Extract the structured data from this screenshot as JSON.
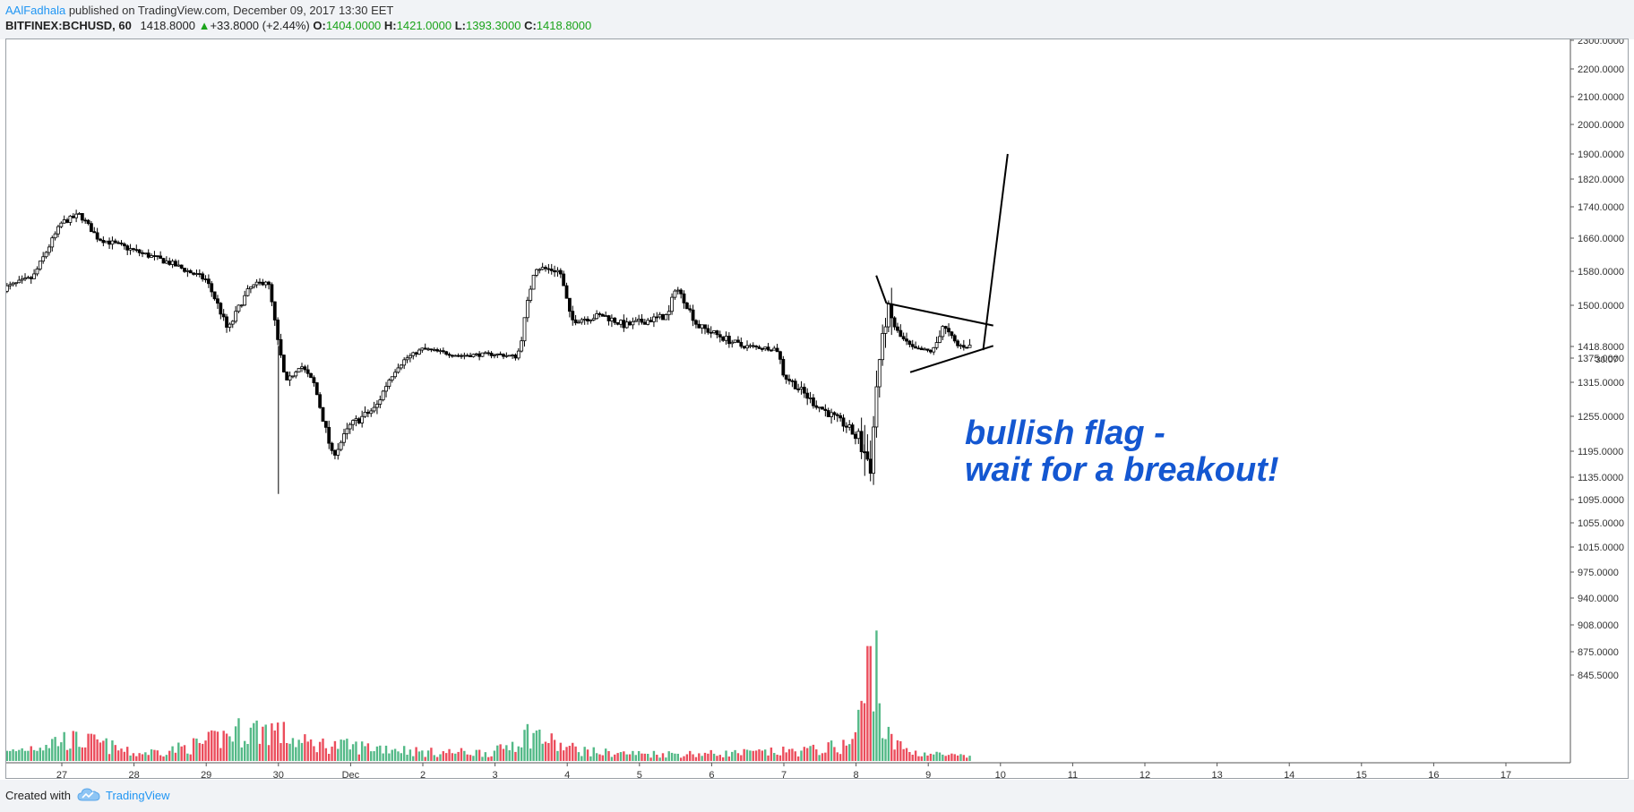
{
  "header": {
    "author": "AAlFadhala",
    "published_text": " published on TradingView.com, December 09, 2017 13:30 EET",
    "symbol": "BITFINEX:BCHUSD, 60",
    "last": "1418.8000",
    "change": "+33.8000 (+2.44%)",
    "o_label": "O:",
    "o_value": "1404.0000",
    "h_label": "H:",
    "h_value": "1421.0000",
    "l_label": "L:",
    "l_value": "1393.3000",
    "c_label": "C:",
    "c_value": "1418.8000"
  },
  "footer": {
    "created_with": "Created with",
    "brand": "TradingView"
  },
  "colors": {
    "up": "#26a69a",
    "down": "#ef5350",
    "volume_up": "#53b987",
    "volume_down": "#eb4d5c",
    "annotation": "#1457d1",
    "candle": "#000000"
  },
  "chart_data": {
    "type": "candlestick",
    "x_ticks": [
      "27",
      "28",
      "29",
      "30",
      "Dec",
      "2",
      "3",
      "4",
      "5",
      "6",
      "7",
      "8",
      "9",
      "10",
      "11",
      "12",
      "13",
      "14",
      "15",
      "16",
      "17"
    ],
    "y_ticks": [
      "2300.0000",
      "2200.0000",
      "2100.0000",
      "2000.0000",
      "1900.0000",
      "1820.0000",
      "1740.0000",
      "1660.0000",
      "1580.0000",
      "1500.0000",
      "1375.0000",
      "1315.0000",
      "1255.0000",
      "1195.0000",
      "1135.0000",
      "1095.0000",
      "1055.0000",
      "1015.0000",
      "975.0000",
      "940.0000",
      "908.0000",
      "875.0000",
      "845.5000"
    ],
    "price_scale": [
      [
        2300,
        2300
      ],
      [
        2200,
        2200
      ],
      [
        2100,
        2100
      ],
      [
        2000,
        2000
      ],
      [
        1900,
        1900
      ],
      [
        1820,
        1820
      ],
      [
        1740,
        1740
      ],
      [
        1660,
        1660
      ],
      [
        1580,
        1580
      ],
      [
        1500,
        1500
      ],
      [
        1418.8,
        1418.8
      ],
      [
        1375,
        1375
      ],
      [
        1315,
        1315
      ],
      [
        1255,
        1255
      ],
      [
        1195,
        1195
      ],
      [
        1135,
        1135
      ],
      [
        1095,
        1095
      ],
      [
        1055,
        1055
      ],
      [
        1015,
        1015
      ],
      [
        975,
        975
      ],
      [
        940,
        940
      ],
      [
        908,
        908
      ],
      [
        875,
        875
      ],
      [
        845.5,
        845.5
      ]
    ],
    "last_price_label": "1418.8000",
    "countdown_label": "30:07",
    "price_path": [
      [
        -0.8,
        1540
      ],
      [
        -0.4,
        1565
      ],
      [
        0,
        1700
      ],
      [
        0.25,
        1720
      ],
      [
        0.5,
        1660
      ],
      [
        1.0,
        1630
      ],
      [
        1.5,
        1600
      ],
      [
        2.0,
        1560
      ],
      [
        2.3,
        1450
      ],
      [
        2.6,
        1540
      ],
      [
        2.85,
        1560
      ],
      [
        3.0,
        1420
      ],
      [
        3.1,
        1310
      ],
      [
        3.3,
        1360
      ],
      [
        3.5,
        1310
      ],
      [
        3.75,
        1185
      ],
      [
        4.0,
        1240
      ],
      [
        4.35,
        1270
      ],
      [
        4.65,
        1355
      ],
      [
        5.0,
        1410
      ],
      [
        5.5,
        1385
      ],
      [
        6.0,
        1390
      ],
      [
        6.3,
        1380
      ],
      [
        6.55,
        1590
      ],
      [
        6.9,
        1580
      ],
      [
        7.05,
        1470
      ],
      [
        7.5,
        1480
      ],
      [
        7.8,
        1460
      ],
      [
        8.4,
        1480
      ],
      [
        8.5,
        1545
      ],
      [
        8.8,
        1460
      ],
      [
        9.4,
        1420
      ],
      [
        9.9,
        1410
      ],
      [
        10.0,
        1330
      ],
      [
        10.4,
        1280
      ],
      [
        10.9,
        1235
      ],
      [
        11.1,
        1200
      ],
      [
        11.2,
        1160
      ],
      [
        11.3,
        1340
      ],
      [
        11.42,
        1490
      ],
      [
        11.6,
        1440
      ],
      [
        11.8,
        1410
      ],
      [
        12.05,
        1400
      ],
      [
        12.2,
        1460
      ],
      [
        12.4,
        1420
      ],
      [
        12.6,
        1418.8
      ]
    ],
    "volume_profile": [
      [
        -0.8,
        10
      ],
      [
        0.0,
        30
      ],
      [
        0.5,
        25
      ],
      [
        1.0,
        10
      ],
      [
        1.5,
        15
      ],
      [
        2.0,
        25
      ],
      [
        2.4,
        40
      ],
      [
        2.9,
        45
      ],
      [
        3.3,
        25
      ],
      [
        4.0,
        20
      ],
      [
        4.6,
        18
      ],
      [
        5.0,
        12
      ],
      [
        6.0,
        12
      ],
      [
        6.5,
        40
      ],
      [
        6.9,
        20
      ],
      [
        7.4,
        12
      ],
      [
        8.0,
        10
      ],
      [
        9.0,
        10
      ],
      [
        9.8,
        12
      ],
      [
        10.4,
        15
      ],
      [
        10.9,
        22
      ],
      [
        11.0,
        40
      ],
      [
        11.1,
        80
      ],
      [
        11.2,
        145
      ],
      [
        11.27,
        165
      ],
      [
        11.35,
        50
      ],
      [
        11.5,
        25
      ],
      [
        11.8,
        12
      ],
      [
        12.6,
        5
      ]
    ],
    "annotations": {
      "text_line1": "bullish flag -",
      "text_line2": "wait for a breakout!",
      "lines": [
        {
          "name": "pole-line",
          "points": [
            [
              11.28,
              1570
            ],
            [
              11.42,
              1505
            ]
          ]
        },
        {
          "name": "flag-upper-line",
          "points": [
            [
              11.42,
              1505
            ],
            [
              12.9,
              1460
            ]
          ]
        },
        {
          "name": "flag-lower-line",
          "points": [
            [
              11.75,
              1340
            ],
            [
              12.9,
              1420
            ]
          ]
        },
        {
          "name": "breakout-line",
          "points": [
            [
              12.76,
              1405
            ],
            [
              13.1,
              1900
            ]
          ]
        }
      ]
    }
  }
}
